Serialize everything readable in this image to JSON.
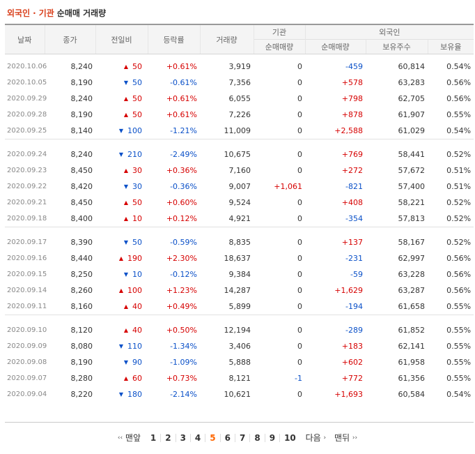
{
  "title": {
    "foreign": "외국인",
    "dot": "·",
    "inst": "기관",
    "rest": "순매매 거래량"
  },
  "headers": {
    "date": "날짜",
    "close": "종가",
    "change": "전일비",
    "rate": "등락률",
    "volume": "거래량",
    "inst": "기관",
    "foreign": "외국인",
    "inst_net": "순매매량",
    "foreign_net": "순매매량",
    "foreign_shares": "보유주수",
    "foreign_ratio": "보유율"
  },
  "groups": [
    [
      {
        "date": "2020.10.06",
        "close": "8,240",
        "dir": "up",
        "chg": "50",
        "rate": "+0.61%",
        "vol": "3,919",
        "inst": "0",
        "fnet": "-459",
        "shares": "60,814",
        "ratio": "0.54%"
      },
      {
        "date": "2020.10.05",
        "close": "8,190",
        "dir": "down",
        "chg": "50",
        "rate": "-0.61%",
        "vol": "7,356",
        "inst": "0",
        "fnet": "+578",
        "shares": "63,283",
        "ratio": "0.56%"
      },
      {
        "date": "2020.09.29",
        "close": "8,240",
        "dir": "up",
        "chg": "50",
        "rate": "+0.61%",
        "vol": "6,055",
        "inst": "0",
        "fnet": "+798",
        "shares": "62,705",
        "ratio": "0.56%"
      },
      {
        "date": "2020.09.28",
        "close": "8,190",
        "dir": "up",
        "chg": "50",
        "rate": "+0.61%",
        "vol": "7,226",
        "inst": "0",
        "fnet": "+878",
        "shares": "61,907",
        "ratio": "0.55%"
      },
      {
        "date": "2020.09.25",
        "close": "8,140",
        "dir": "down",
        "chg": "100",
        "rate": "-1.21%",
        "vol": "11,009",
        "inst": "0",
        "fnet": "+2,588",
        "shares": "61,029",
        "ratio": "0.54%"
      }
    ],
    [
      {
        "date": "2020.09.24",
        "close": "8,240",
        "dir": "down",
        "chg": "210",
        "rate": "-2.49%",
        "vol": "10,675",
        "inst": "0",
        "fnet": "+769",
        "shares": "58,441",
        "ratio": "0.52%"
      },
      {
        "date": "2020.09.23",
        "close": "8,450",
        "dir": "up",
        "chg": "30",
        "rate": "+0.36%",
        "vol": "7,160",
        "inst": "0",
        "fnet": "+272",
        "shares": "57,672",
        "ratio": "0.51%"
      },
      {
        "date": "2020.09.22",
        "close": "8,420",
        "dir": "down",
        "chg": "30",
        "rate": "-0.36%",
        "vol": "9,007",
        "inst": "+1,061",
        "fnet": "-821",
        "shares": "57,400",
        "ratio": "0.51%"
      },
      {
        "date": "2020.09.21",
        "close": "8,450",
        "dir": "up",
        "chg": "50",
        "rate": "+0.60%",
        "vol": "9,524",
        "inst": "0",
        "fnet": "+408",
        "shares": "58,221",
        "ratio": "0.52%"
      },
      {
        "date": "2020.09.18",
        "close": "8,400",
        "dir": "up",
        "chg": "10",
        "rate": "+0.12%",
        "vol": "4,921",
        "inst": "0",
        "fnet": "-354",
        "shares": "57,813",
        "ratio": "0.52%"
      }
    ],
    [
      {
        "date": "2020.09.17",
        "close": "8,390",
        "dir": "down",
        "chg": "50",
        "rate": "-0.59%",
        "vol": "8,835",
        "inst": "0",
        "fnet": "+137",
        "shares": "58,167",
        "ratio": "0.52%"
      },
      {
        "date": "2020.09.16",
        "close": "8,440",
        "dir": "up",
        "chg": "190",
        "rate": "+2.30%",
        "vol": "18,637",
        "inst": "0",
        "fnet": "-231",
        "shares": "62,997",
        "ratio": "0.56%"
      },
      {
        "date": "2020.09.15",
        "close": "8,250",
        "dir": "down",
        "chg": "10",
        "rate": "-0.12%",
        "vol": "9,384",
        "inst": "0",
        "fnet": "-59",
        "shares": "63,228",
        "ratio": "0.56%"
      },
      {
        "date": "2020.09.14",
        "close": "8,260",
        "dir": "up",
        "chg": "100",
        "rate": "+1.23%",
        "vol": "14,287",
        "inst": "0",
        "fnet": "+1,629",
        "shares": "63,287",
        "ratio": "0.56%"
      },
      {
        "date": "2020.09.11",
        "close": "8,160",
        "dir": "up",
        "chg": "40",
        "rate": "+0.49%",
        "vol": "5,899",
        "inst": "0",
        "fnet": "-194",
        "shares": "61,658",
        "ratio": "0.55%"
      }
    ],
    [
      {
        "date": "2020.09.10",
        "close": "8,120",
        "dir": "up",
        "chg": "40",
        "rate": "+0.50%",
        "vol": "12,194",
        "inst": "0",
        "fnet": "-289",
        "shares": "61,852",
        "ratio": "0.55%"
      },
      {
        "date": "2020.09.09",
        "close": "8,080",
        "dir": "down",
        "chg": "110",
        "rate": "-1.34%",
        "vol": "3,406",
        "inst": "0",
        "fnet": "+183",
        "shares": "62,141",
        "ratio": "0.55%"
      },
      {
        "date": "2020.09.08",
        "close": "8,190",
        "dir": "down",
        "chg": "90",
        "rate": "-1.09%",
        "vol": "5,888",
        "inst": "0",
        "fnet": "+602",
        "shares": "61,958",
        "ratio": "0.55%"
      },
      {
        "date": "2020.09.07",
        "close": "8,280",
        "dir": "up",
        "chg": "60",
        "rate": "+0.73%",
        "vol": "8,121",
        "inst": "-1",
        "fnet": "+772",
        "shares": "61,356",
        "ratio": "0.55%"
      },
      {
        "date": "2020.09.04",
        "close": "8,220",
        "dir": "down",
        "chg": "180",
        "rate": "-2.14%",
        "vol": "10,621",
        "inst": "0",
        "fnet": "+1,693",
        "shares": "60,584",
        "ratio": "0.54%"
      }
    ]
  ],
  "pager": {
    "first_symbol": "‹‹",
    "first": "맨앞",
    "pages": [
      "1",
      "2",
      "3",
      "4",
      "5",
      "6",
      "7",
      "8",
      "9",
      "10"
    ],
    "current": "5",
    "next": "다음",
    "next_symbol": "›",
    "last": "맨뒤",
    "last_symbol": "››"
  }
}
